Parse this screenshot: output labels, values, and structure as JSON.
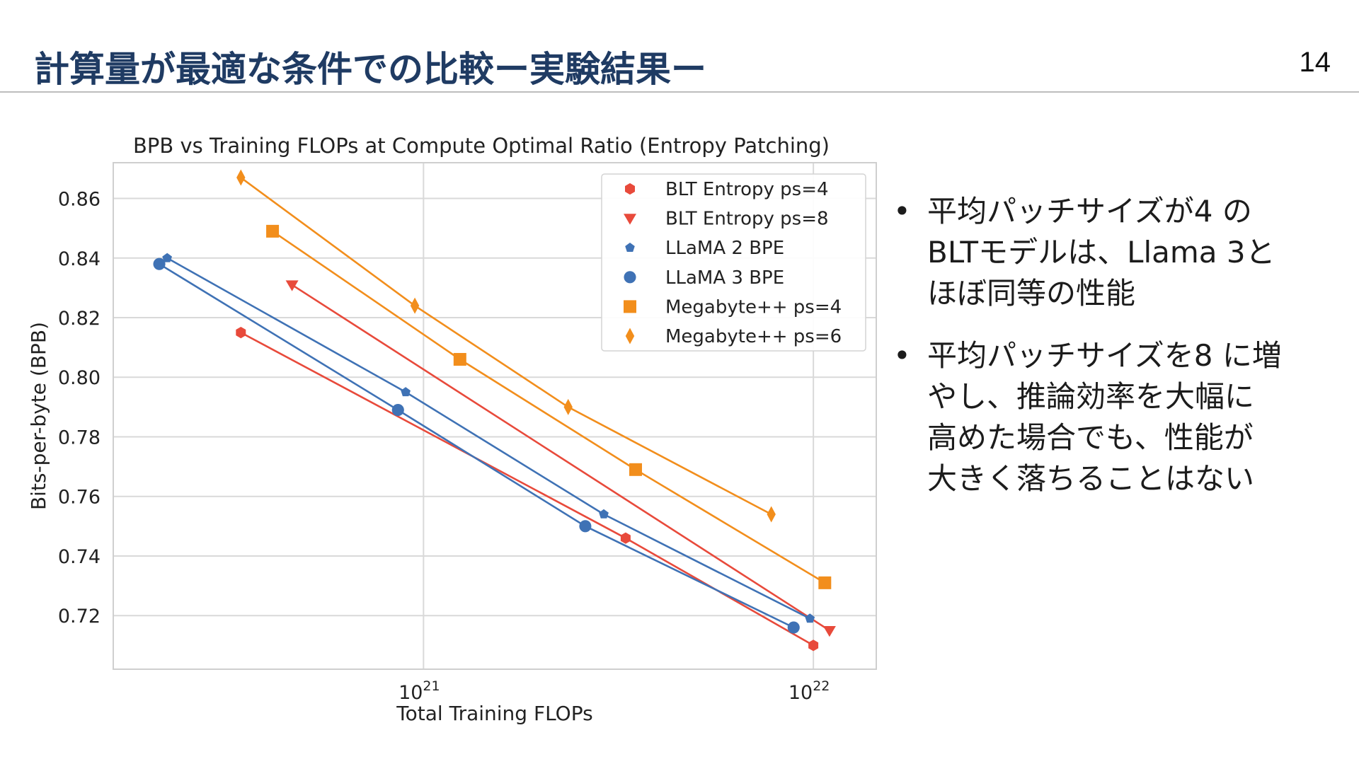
{
  "slide": {
    "title": "計算量が最適な条件での比較ー実験結果ー",
    "page_number": "14"
  },
  "bullets": [
    {
      "lines": [
        "平均パッチサイズが4 の",
        "BLTモデルは、Llama 3と",
        "ほぼ同等の性能"
      ]
    },
    {
      "lines": [
        "平均パッチサイズを8 に増",
        "やし、推論効率を大幅に",
        "高めた場合でも、性能が",
        "大きく落ちることはない"
      ]
    }
  ],
  "colors": {
    "title": "#1f3b63",
    "orange": "#f28e1c",
    "red": "#e84a3b",
    "blue": "#3f72b5",
    "grid": "#d9d9d9"
  },
  "chart_data": {
    "type": "line",
    "title": "BPB vs Training FLOPs at Compute Optimal Ratio (Entropy Patching)",
    "xlabel": "Total Training FLOPs",
    "ylabel": "Bits-per-byte (BPB)",
    "xscale": "log",
    "xlim": [
      1.6e+20,
      1.45e+22
    ],
    "ylim": [
      0.702,
      0.872
    ],
    "yticks": [
      0.72,
      0.74,
      0.76,
      0.78,
      0.8,
      0.82,
      0.84,
      0.86
    ],
    "ytick_labels": [
      "0.72",
      "0.74",
      "0.76",
      "0.78",
      "0.80",
      "0.82",
      "0.84",
      "0.86"
    ],
    "xticks": [
      1e+21,
      1e+22
    ],
    "xtick_bases": [
      "10",
      "10"
    ],
    "xtick_exponents": [
      "21",
      "22"
    ],
    "grid": true,
    "legend_position": "top-right",
    "series": [
      {
        "name": "BLT Entropy ps=4",
        "color": "#e84a3b",
        "marker": "hexagon",
        "points": [
          [
            3.4e+20,
            0.815
          ],
          [
            3.3e+21,
            0.746
          ],
          [
            1e+22,
            0.71
          ]
        ]
      },
      {
        "name": "BLT Entropy ps=8",
        "color": "#e84a3b",
        "marker": "triangle-down",
        "points": [
          [
            4.6e+20,
            0.831
          ],
          [
            1.1e+22,
            0.715
          ]
        ]
      },
      {
        "name": "LLaMA 2 BPE",
        "color": "#3f72b5",
        "marker": "pentagon",
        "points": [
          [
            2.2e+20,
            0.84
          ],
          [
            9e+20,
            0.795
          ],
          [
            2.9e+21,
            0.754
          ],
          [
            9.8e+21,
            0.719
          ]
        ]
      },
      {
        "name": "LLaMA 3 BPE",
        "color": "#3f72b5",
        "marker": "circle",
        "points": [
          [
            2.1e+20,
            0.838
          ],
          [
            8.6e+20,
            0.789
          ],
          [
            2.6e+21,
            0.75
          ],
          [
            8.9e+21,
            0.716
          ]
        ]
      },
      {
        "name": "Megabyte++ ps=4",
        "color": "#f28e1c",
        "marker": "square",
        "points": [
          [
            4.1e+20,
            0.849
          ],
          [
            1.24e+21,
            0.806
          ],
          [
            3.5e+21,
            0.769
          ],
          [
            1.07e+22,
            0.731
          ]
        ]
      },
      {
        "name": "Megabyte++ ps=6",
        "color": "#f28e1c",
        "marker": "diamond",
        "points": [
          [
            3.4e+20,
            0.867
          ],
          [
            9.5e+20,
            0.824
          ],
          [
            2.35e+21,
            0.79
          ],
          [
            7.8e+21,
            0.754
          ]
        ]
      }
    ]
  }
}
